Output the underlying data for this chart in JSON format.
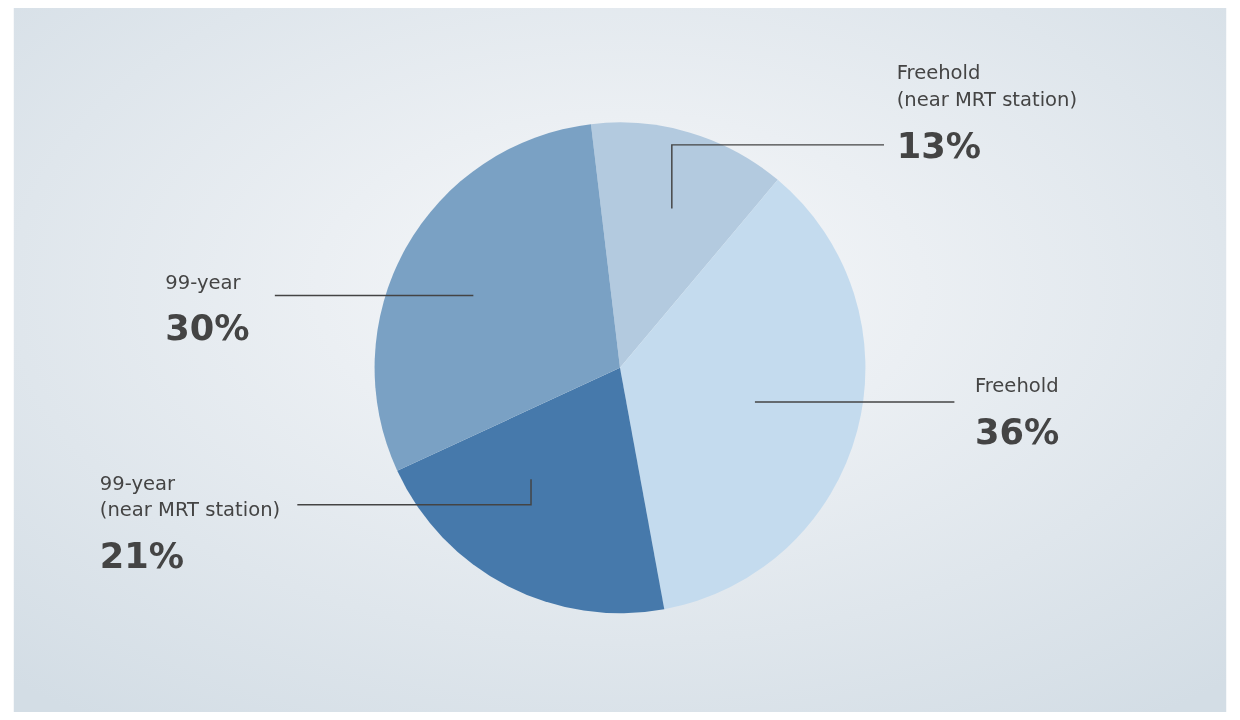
{
  "chart_data": {
    "type": "pie",
    "categories": [
      "Freehold\n(near MRT station)",
      "Freehold",
      "99-year\n(near MRT station)",
      "99-year"
    ],
    "values": [
      13,
      36,
      21,
      30
    ],
    "colors": [
      "#b3cadf",
      "#c4dbee",
      "#4679ab",
      "#7aa1c4"
    ],
    "value_labels": [
      "13%",
      "36%",
      "21%",
      "30%"
    ],
    "legend": false
  }
}
